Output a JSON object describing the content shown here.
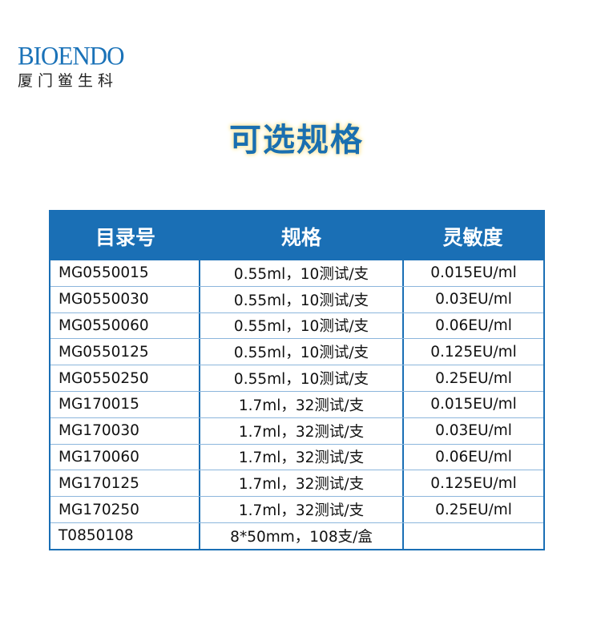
{
  "logo": {
    "en": "BIOENDO",
    "cn": "厦门鲎生科"
  },
  "title": "可选规格",
  "table": {
    "headers": [
      "目录号",
      "规格",
      "灵敏度"
    ],
    "rows": [
      [
        "MG0550015",
        "0.55ml，10测试/支",
        "0.015EU/ml"
      ],
      [
        "MG0550030",
        "0.55ml，10测试/支",
        "0.03EU/ml"
      ],
      [
        "MG0550060",
        "0.55ml，10测试/支",
        "0.06EU/ml"
      ],
      [
        "MG0550125",
        "0.55ml，10测试/支",
        "0.125EU/ml"
      ],
      [
        "MG0550250",
        "0.55ml，10测试/支",
        "0.25EU/ml"
      ],
      [
        "MG170015",
        "1.7ml，32测试/支",
        "0.015EU/ml"
      ],
      [
        "MG170030",
        "1.7ml，32测试/支",
        "0.03EU/ml"
      ],
      [
        "MG170060",
        "1.7ml，32测试/支",
        "0.06EU/ml"
      ],
      [
        "MG170125",
        "1.7ml，32测试/支",
        "0.125EU/ml"
      ],
      [
        "MG170250",
        "1.7ml，32测试/支",
        "0.25EU/ml"
      ],
      [
        "T0850108",
        "8*50mm，108支/盒",
        ""
      ]
    ]
  },
  "colors": {
    "brand": "#1a6fb5"
  }
}
